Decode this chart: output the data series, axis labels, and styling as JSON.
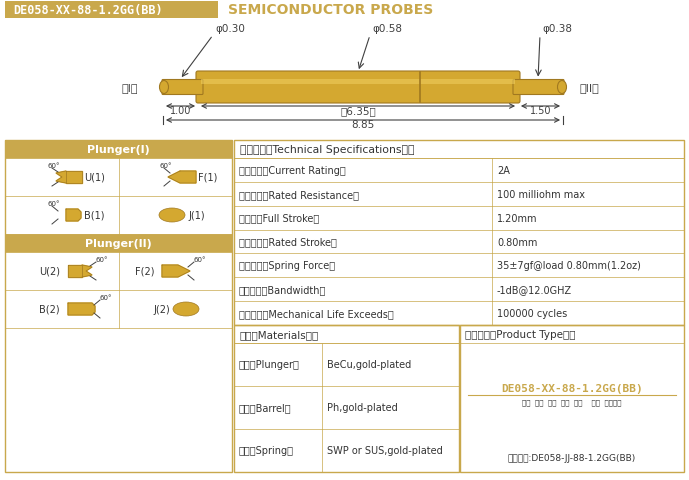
{
  "title_box_text": "DE058-XX-88-1.2GG(BB)",
  "title_right_text": "SEMICONDUCTOR PROBES",
  "bg_color": "#FFFFFF",
  "gold_color": "#C9A84C",
  "probe_color": "#D4A830",
  "probe_shadow": "#A07820",
  "probe_highlight": "#F0D060",
  "dim_color": "#404040",
  "table_header_bg": "#C9A84C",
  "table_border_color": "#C8A84C",
  "white": "#FFFFFF",
  "black": "#333333",
  "specs": [
    [
      "额定电流（Current Rating）",
      "2A"
    ],
    [
      "额定电阔（Rated Resistance）",
      "100 milliohm max"
    ],
    [
      "满行程（Full Stroke）",
      "1.20mm"
    ],
    [
      "额定行程（Rated Stroke）",
      "0.80mm"
    ],
    [
      "额定弹力（Spring Force）",
      "35±7gf@load 0.80mm(1.2oz)"
    ],
    [
      "频率带宽（Bandwidth）",
      "-1dB@12.0GHZ"
    ],
    [
      "测试寿命（Mechanical Life Exceeds）",
      "100000 cycles"
    ]
  ],
  "materials": [
    [
      "针头（Plunger）",
      "BeCu,gold-plated"
    ],
    [
      "针管（Barrel）",
      "Ph,gold-plated"
    ],
    [
      "弹簧（Spring）",
      "SWP or SUS,gold-plated"
    ]
  ],
  "specs_title": "技术要求（Technical Specifications）：",
  "plunger1_title": "Plunger(I)",
  "plunger2_title": "Plunger(II)",
  "materials_title": "材质（Materials）：",
  "product_type_title": "成品型号（Product Type）：",
  "product_type_model": "DE058-XX-88-1.2GG(BB)",
  "product_type_fields": "系列  规格  头型  行长  弹力    镀金  针头材质",
  "product_type_example": "订购举例:DE058-JJ-88-1.2GG(BB)"
}
